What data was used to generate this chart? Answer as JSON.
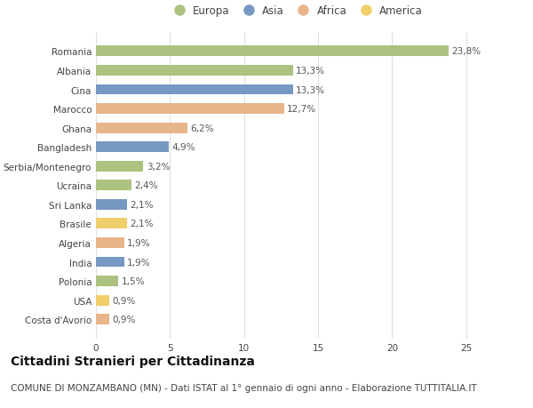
{
  "categories": [
    "Costa d'Avorio",
    "USA",
    "Polonia",
    "India",
    "Algeria",
    "Brasile",
    "Sri Lanka",
    "Ucraina",
    "Serbia/Montenegro",
    "Bangladesh",
    "Ghana",
    "Marocco",
    "Cina",
    "Albania",
    "Romania"
  ],
  "values": [
    0.9,
    0.9,
    1.5,
    1.9,
    1.9,
    2.1,
    2.1,
    2.4,
    3.2,
    4.9,
    6.2,
    12.7,
    13.3,
    13.3,
    23.8
  ],
  "labels": [
    "0,9%",
    "0,9%",
    "1,5%",
    "1,9%",
    "1,9%",
    "2,1%",
    "2,1%",
    "2,4%",
    "3,2%",
    "4,9%",
    "6,2%",
    "12,7%",
    "13,3%",
    "13,3%",
    "23,8%"
  ],
  "continent": [
    "Africa",
    "America",
    "Europa",
    "Asia",
    "Africa",
    "America",
    "Asia",
    "Europa",
    "Europa",
    "Asia",
    "Africa",
    "Africa",
    "Asia",
    "Europa",
    "Europa"
  ],
  "colors": {
    "Europa": "#adc180",
    "Asia": "#7599c2",
    "Africa": "#e8b48a",
    "America": "#f0ce6a"
  },
  "legend_order": [
    "Europa",
    "Asia",
    "Africa",
    "America"
  ],
  "title": "Cittadini Stranieri per Cittadinanza",
  "subtitle": "COMUNE DI MONZAMBANO (MN) - Dati ISTAT al 1° gennaio di ogni anno - Elaborazione TUTTITALIA.IT",
  "xlim": [
    0,
    27
  ],
  "xticks": [
    0,
    5,
    10,
    15,
    20,
    25
  ],
  "bg_color": "#ffffff",
  "grid_color": "#e0e0e0",
  "bar_height": 0.55,
  "title_fontsize": 10,
  "subtitle_fontsize": 7.5,
  "label_fontsize": 7.5,
  "tick_fontsize": 7.5,
  "legend_fontsize": 8.5
}
